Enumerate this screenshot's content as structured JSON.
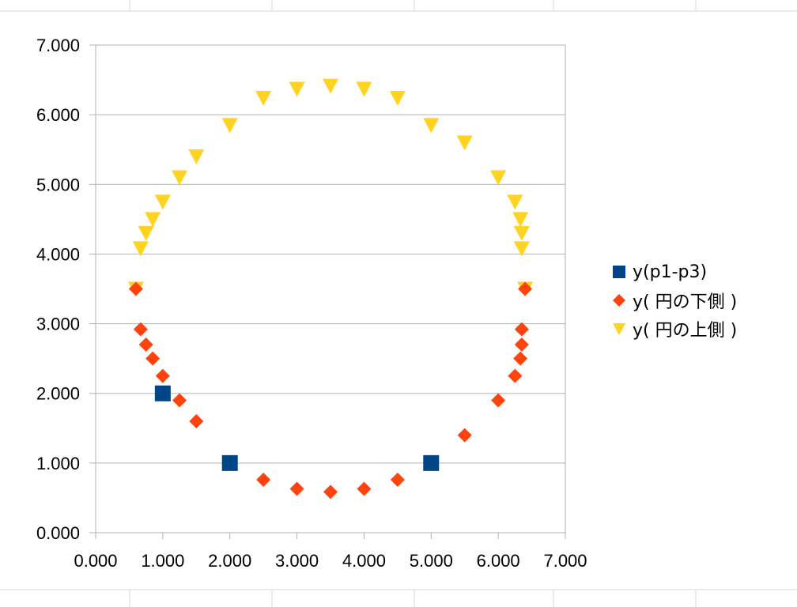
{
  "chart_data": {
    "type": "scatter",
    "title": "",
    "xlabel": "",
    "ylabel": "",
    "xlim": [
      0,
      7
    ],
    "ylim": [
      0,
      7
    ],
    "x_ticks": [
      "0.000",
      "1.000",
      "2.000",
      "3.000",
      "4.000",
      "5.000",
      "6.000",
      "7.000"
    ],
    "y_ticks": [
      "0.000",
      "1.000",
      "2.000",
      "3.000",
      "4.000",
      "5.000",
      "6.000",
      "7.000"
    ],
    "grid": "horizontal",
    "legend_position": "right",
    "series": [
      {
        "name": "y(p1-p3)",
        "marker": "square",
        "color": "#004586",
        "points": [
          [
            1,
            2
          ],
          [
            2,
            1
          ],
          [
            5,
            1
          ]
        ]
      },
      {
        "name": "y( 円の下側 )",
        "marker": "diamond",
        "color": "#ff420e",
        "description": "lower semicircle, center (3.5, 3.5), radius 2.915",
        "points": [
          [
            0.6,
            3.5
          ],
          [
            0.67,
            2.92
          ],
          [
            0.75,
            2.7
          ],
          [
            0.85,
            2.5
          ],
          [
            1.0,
            2.25
          ],
          [
            1.25,
            1.9
          ],
          [
            1.5,
            1.6
          ],
          [
            2.0,
            1.0
          ],
          [
            2.5,
            0.76
          ],
          [
            3.0,
            0.63
          ],
          [
            3.5,
            0.585
          ],
          [
            4.0,
            0.63
          ],
          [
            4.5,
            0.76
          ],
          [
            5.0,
            1.0
          ],
          [
            5.5,
            1.4
          ],
          [
            6.0,
            1.9
          ],
          [
            6.25,
            2.25
          ],
          [
            6.33,
            2.5
          ],
          [
            6.35,
            2.7
          ],
          [
            6.35,
            2.92
          ],
          [
            6.4,
            3.5
          ]
        ]
      },
      {
        "name": "y( 円の上側 )",
        "marker": "triangle-down",
        "color": "#ffd320",
        "description": "upper semicircle, center (3.5, 3.5), radius 2.915",
        "points": [
          [
            0.6,
            3.5
          ],
          [
            0.67,
            4.08
          ],
          [
            0.75,
            4.3
          ],
          [
            0.85,
            4.5
          ],
          [
            1.0,
            4.75
          ],
          [
            1.25,
            5.1
          ],
          [
            1.5,
            5.4
          ],
          [
            2.0,
            5.85
          ],
          [
            2.5,
            6.24
          ],
          [
            3.0,
            6.37
          ],
          [
            3.5,
            6.415
          ],
          [
            4.0,
            6.37
          ],
          [
            4.5,
            6.24
          ],
          [
            5.0,
            5.85
          ],
          [
            5.5,
            5.6
          ],
          [
            6.0,
            5.1
          ],
          [
            6.25,
            4.75
          ],
          [
            6.33,
            4.5
          ],
          [
            6.35,
            4.3
          ],
          [
            6.35,
            4.08
          ],
          [
            6.4,
            3.5
          ]
        ]
      }
    ]
  }
}
